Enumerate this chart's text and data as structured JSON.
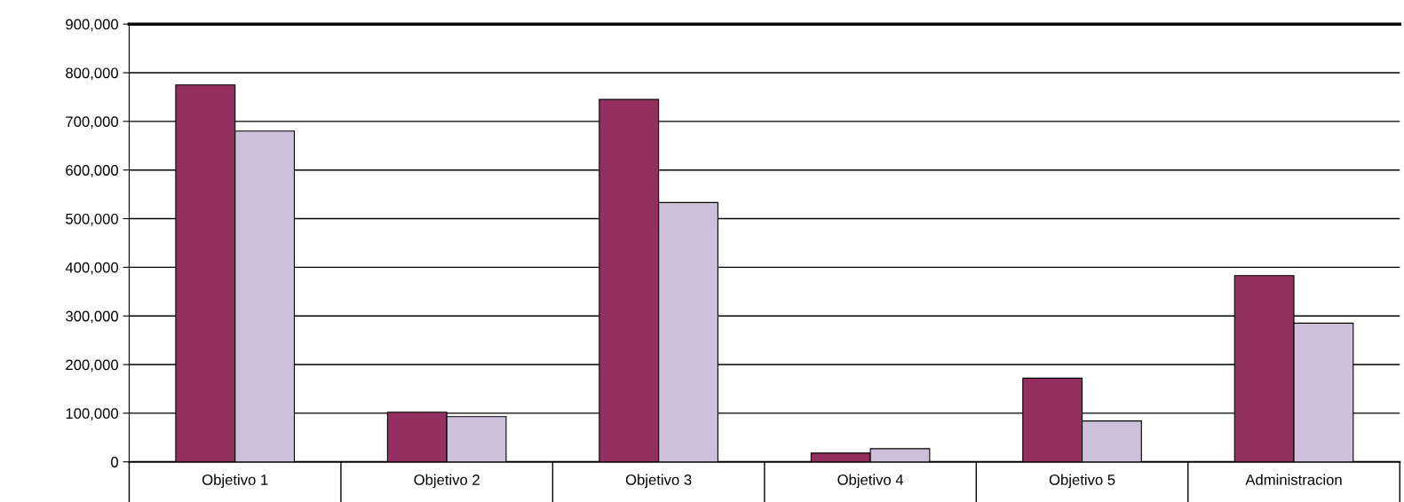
{
  "chart_data": {
    "type": "bar",
    "categories": [
      "Objetivo 1",
      "Objetivo 2",
      "Objetivo 3",
      "Objetivo 4",
      "Objetivo 5",
      "Administracion"
    ],
    "series": [
      {
        "color": "#943060",
        "values": [
          775000,
          102000,
          745000,
          18000,
          172000,
          383000
        ]
      },
      {
        "color": "#ccc0da",
        "values": [
          680000,
          93000,
          533000,
          27000,
          84000,
          285000
        ]
      }
    ],
    "ylim": [
      0,
      900000
    ],
    "yticks": [
      {
        "value": 0,
        "label": "0"
      },
      {
        "value": 100000,
        "label": "100,000"
      },
      {
        "value": 200000,
        "label": "200,000"
      },
      {
        "value": 300000,
        "label": "300,000"
      },
      {
        "value": 400000,
        "label": "400,000"
      },
      {
        "value": 500000,
        "label": "500,000"
      },
      {
        "value": 600000,
        "label": "600,000"
      },
      {
        "value": 700000,
        "label": "700,000"
      },
      {
        "value": 800000,
        "label": "800,000"
      },
      {
        "value": 900000,
        "label": "900,000"
      }
    ],
    "grid": "y"
  }
}
